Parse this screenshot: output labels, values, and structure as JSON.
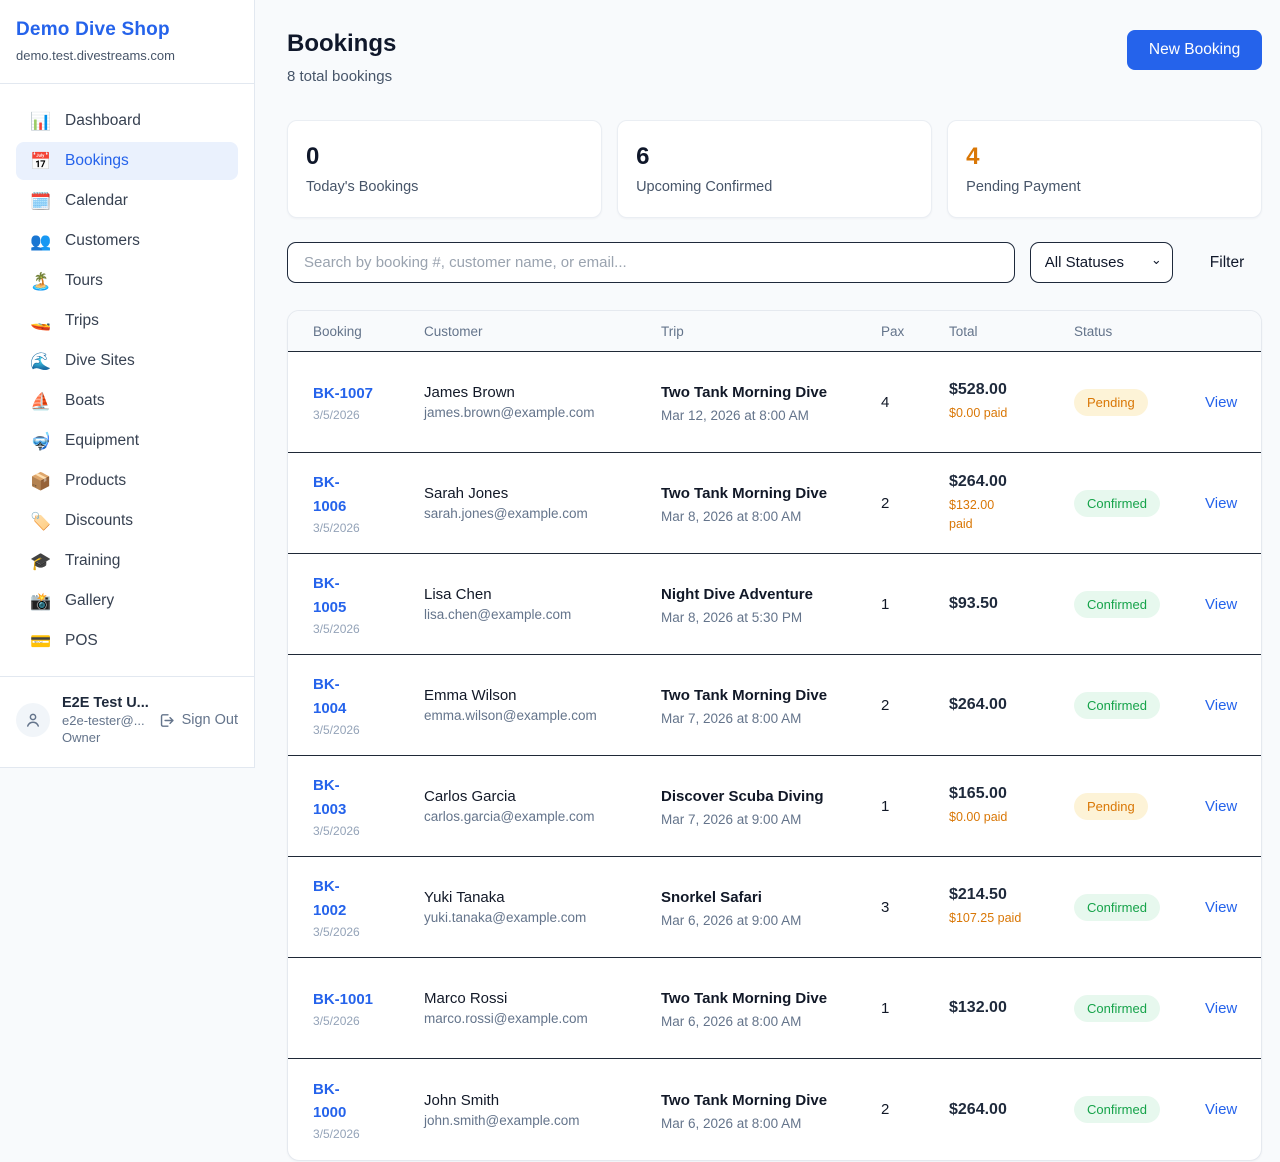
{
  "sidebar": {
    "logo": "Demo Dive Shop",
    "domain": "demo.test.divestreams.com",
    "items": [
      {
        "label": "Dashboard",
        "icon": "📊",
        "active": false
      },
      {
        "label": "Bookings",
        "icon": "📅",
        "active": true
      },
      {
        "label": "Calendar",
        "icon": "🗓️",
        "active": false
      },
      {
        "label": "Customers",
        "icon": "👥",
        "active": false
      },
      {
        "label": "Tours",
        "icon": "🏝️",
        "active": false
      },
      {
        "label": "Trips",
        "icon": "🚤",
        "active": false
      },
      {
        "label": "Dive Sites",
        "icon": "🌊",
        "active": false
      },
      {
        "label": "Boats",
        "icon": "⛵",
        "active": false
      },
      {
        "label": "Equipment",
        "icon": "🤿",
        "active": false
      },
      {
        "label": "Products",
        "icon": "📦",
        "active": false
      },
      {
        "label": "Discounts",
        "icon": "🏷️",
        "active": false
      },
      {
        "label": "Training",
        "icon": "🎓",
        "active": false
      },
      {
        "label": "Gallery",
        "icon": "📸",
        "active": false
      },
      {
        "label": "POS",
        "icon": "💳",
        "active": false
      }
    ],
    "user": {
      "name": "E2E Test U...",
      "email": "e2e-tester@...",
      "role": "Owner",
      "sign_out": "Sign Out"
    }
  },
  "header": {
    "title": "Bookings",
    "subtitle": "8 total bookings",
    "new_booking": "New Booking"
  },
  "stats": [
    {
      "value": "0",
      "label": "Today's Bookings",
      "highlight": false
    },
    {
      "value": "6",
      "label": "Upcoming Confirmed",
      "highlight": false
    },
    {
      "value": "4",
      "label": "Pending Payment",
      "highlight": true
    }
  ],
  "filters": {
    "search_placeholder": "Search by booking #, customer name, or email...",
    "status_selected": "All Statuses",
    "filter_label": "Filter"
  },
  "table": {
    "columns": [
      "Booking",
      "Customer",
      "Trip",
      "Pax",
      "Total",
      "Status"
    ],
    "rows": [
      {
        "id_display": "BK-1007",
        "date": "3/5/2026",
        "customer": "James Brown",
        "email": "james.brown@example.com",
        "trip": "Two Tank Morning Dive",
        "trip_date": "Mar 12, 2026 at 8:00 AM",
        "pax": "4",
        "total": "$528.00",
        "paid": "$0.00 paid",
        "status": "Pending",
        "action": "View"
      },
      {
        "id_display": "BK-\n1006",
        "date": "3/5/2026",
        "customer": "Sarah Jones",
        "email": "sarah.jones@example.com",
        "trip": "Two Tank Morning Dive",
        "trip_date": "Mar 8, 2026 at 8:00 AM",
        "pax": "2",
        "total": "$264.00",
        "paid": "$132.00\npaid",
        "status": "Confirmed",
        "action": "View"
      },
      {
        "id_display": "BK-\n1005",
        "date": "3/5/2026",
        "customer": "Lisa Chen",
        "email": "lisa.chen@example.com",
        "trip": "Night Dive Adventure",
        "trip_date": "Mar 8, 2026 at 5:30 PM",
        "pax": "1",
        "total": "$93.50",
        "paid": null,
        "status": "Confirmed",
        "action": "View"
      },
      {
        "id_display": "BK-\n1004",
        "date": "3/5/2026",
        "customer": "Emma Wilson",
        "email": "emma.wilson@example.com",
        "trip": "Two Tank Morning Dive",
        "trip_date": "Mar 7, 2026 at 8:00 AM",
        "pax": "2",
        "total": "$264.00",
        "paid": null,
        "status": "Confirmed",
        "action": "View"
      },
      {
        "id_display": "BK-\n1003",
        "date": "3/5/2026",
        "customer": "Carlos Garcia",
        "email": "carlos.garcia@example.com",
        "trip": "Discover Scuba Diving",
        "trip_date": "Mar 7, 2026 at 9:00 AM",
        "pax": "1",
        "total": "$165.00",
        "paid": "$0.00 paid",
        "status": "Pending",
        "action": "View"
      },
      {
        "id_display": "BK-\n1002",
        "date": "3/5/2026",
        "customer": "Yuki Tanaka",
        "email": "yuki.tanaka@example.com",
        "trip": "Snorkel Safari",
        "trip_date": "Mar 6, 2026 at 9:00 AM",
        "pax": "3",
        "total": "$214.50",
        "paid": "$107.25 paid",
        "status": "Confirmed",
        "action": "View"
      },
      {
        "id_display": "BK-1001",
        "date": "3/5/2026",
        "customer": "Marco Rossi",
        "email": "marco.rossi@example.com",
        "trip": "Two Tank Morning Dive",
        "trip_date": "Mar 6, 2026 at 8:00 AM",
        "pax": "1",
        "total": "$132.00",
        "paid": null,
        "status": "Confirmed",
        "action": "View"
      },
      {
        "id_display": "BK-\n1000",
        "date": "3/5/2026",
        "customer": "John Smith",
        "email": "john.smith@example.com",
        "trip": "Two Tank Morning Dive",
        "trip_date": "Mar 6, 2026 at 8:00 AM",
        "pax": "2",
        "total": "$264.00",
        "paid": null,
        "status": "Confirmed",
        "action": "View"
      }
    ]
  },
  "colors": {
    "accent": "#2563eb",
    "pending_text": "#d97706",
    "pending_bg": "#fdf3d7",
    "confirmed_text": "#16a34a",
    "confirmed_bg": "#e7f8ee",
    "page_bg": "#f8fafc"
  }
}
